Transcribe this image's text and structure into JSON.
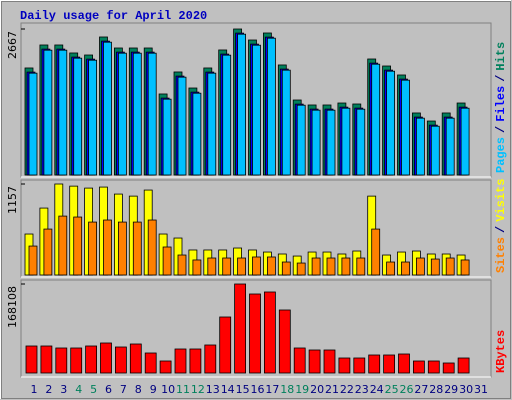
{
  "chart_data": {
    "type": "bar",
    "title": "Daily usage for April 2020",
    "separator": "/",
    "categories": [
      "1",
      "2",
      "3",
      "4",
      "5",
      "6",
      "7",
      "8",
      "9",
      "10",
      "11",
      "12",
      "13",
      "14",
      "15",
      "16",
      "17",
      "18",
      "19",
      "20",
      "21",
      "22",
      "23",
      "24",
      "25",
      "26",
      "27",
      "28",
      "29",
      "30",
      "31"
    ],
    "label_colors": [
      "#000080",
      "#000080",
      "#000080",
      "#00805c",
      "#00805c",
      "#000080",
      "#000080",
      "#000080",
      "#000080",
      "#000080",
      "#00805c",
      "#00805c",
      "#000080",
      "#000080",
      "#000080",
      "#000080",
      "#000080",
      "#00805c",
      "#00805c",
      "#000080",
      "#000080",
      "#000080",
      "#000080",
      "#000080",
      "#00805c",
      "#00805c",
      "#000080",
      "#000080",
      "#000080",
      "#000080",
      "#000080"
    ],
    "panels": [
      {
        "ylim": [
          0,
          2667
        ],
        "yticks": [
          2667
        ],
        "series": [
          {
            "name": "Hits",
            "color": "#00805c",
            "values": [
              1955,
              2375,
              2375,
              2229,
              2192,
              2521,
              2320,
              2320,
              2320,
              1480,
              1882,
              1589,
              1955,
              2284,
              2667,
              2466,
              2594,
              2010,
              1370,
              1279,
              1279,
              1315,
              1297,
              2119,
              1991,
              1827,
              1133,
              986,
              1133,
              1315,
              null
            ]
          },
          {
            "name": "Files",
            "color": "#0000ff",
            "values": [
              1880,
              2300,
              2300,
              2154,
              2117,
              2446,
              2245,
              2245,
              2245,
              1405,
              1807,
              1514,
              1880,
              2209,
              2592,
              2391,
              2519,
              1935,
              1295,
              1204,
              1204,
              1240,
              1222,
              2044,
              1916,
              1752,
              1058,
              911,
              1058,
              1240,
              null
            ]
          },
          {
            "name": "Pages",
            "color": "#00c0ff",
            "values": [
              1860,
              2280,
              2280,
              2134,
              2097,
              2426,
              2225,
              2225,
              2225,
              1385,
              1787,
              1494,
              1860,
              2189,
              2572,
              2371,
              2499,
              1915,
              1275,
              1184,
              1184,
              1220,
              1202,
              2024,
              1896,
              1732,
              1038,
              891,
              1038,
              1220,
              null
            ]
          }
        ]
      },
      {
        "ylim": [
          0,
          1157
        ],
        "yticks": [
          1157
        ],
        "series": [
          {
            "name": "Visits",
            "color": "#ffff00",
            "values": [
              521,
              851,
              1157,
              1130,
              1105,
              1118,
              1029,
              1003,
              1080,
              521,
              470,
              318,
              318,
              318,
              343,
              318,
              292,
              267,
              241,
              292,
              292,
              267,
              305,
              1003,
              254,
              292,
              305,
              267,
              267,
              254,
              null
            ]
          },
          {
            "name": "Sites",
            "color": "#ff8000",
            "values": [
              368,
              584,
              749,
              737,
              673,
              699,
              673,
              673,
              699,
              356,
              254,
              191,
              216,
              216,
              216,
              229,
              229,
              165,
              152,
              216,
              216,
              216,
              216,
              584,
              165,
              165,
              216,
              203,
              216,
              191,
              null
            ]
          }
        ]
      },
      {
        "ylim": [
          0,
          168108
        ],
        "yticks": [
          168108
        ],
        "series": [
          {
            "name": "KBytes",
            "color": "#ff0000",
            "values": [
              51000,
              51000,
              47225,
              47225,
              51000,
              56670,
              49114,
              54781,
              37780,
              22668,
              45336,
              45336,
              52892,
              105784,
              168108,
              149231,
              153009,
              119007,
              47225,
              43447,
              43447,
              28335,
              28335,
              34002,
              34002,
              35891,
              22668,
              22668,
              18890,
              28335,
              null
            ]
          }
        ]
      }
    ]
  }
}
